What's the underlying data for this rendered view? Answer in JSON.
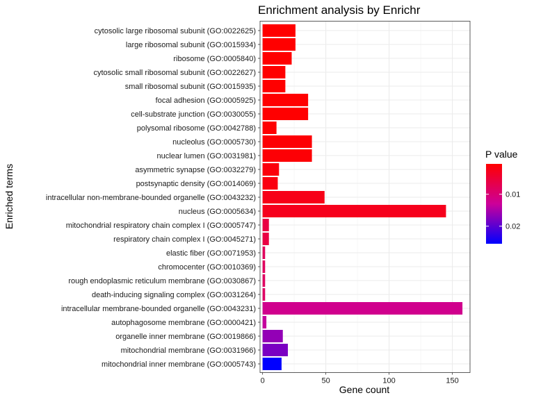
{
  "chart_data": {
    "type": "bar",
    "orientation": "horizontal",
    "title": "Enrichment analysis by Enrichr",
    "xlabel": "Gene count",
    "ylabel": "Enriched terms",
    "xlim": [
      -2,
      164
    ],
    "xticks": [
      0,
      50,
      100,
      150
    ],
    "grid": true,
    "legend": {
      "title": "P value",
      "placement": "right",
      "range": [
        0.0005,
        0.0255
      ],
      "ticks": [
        0.01,
        0.02
      ],
      "tick_labels": [
        "0.01",
        "0.02"
      ],
      "low_color": "#ff0000",
      "high_color": "#0000ff",
      "mid_color": "#cc0099"
    },
    "categories": [
      "cytosolic large ribosomal subunit (GO:0022625)",
      "large ribosomal subunit (GO:0015934)",
      "ribosome (GO:0005840)",
      "cytosolic small ribosomal subunit (GO:0022627)",
      "small ribosomal subunit (GO:0015935)",
      "focal adhesion (GO:0005925)",
      "cell-substrate junction (GO:0030055)",
      "polysomal ribosome (GO:0042788)",
      "nucleolus (GO:0005730)",
      "nuclear lumen (GO:0031981)",
      "asymmetric synapse (GO:0032279)",
      "postsynaptic density (GO:0014069)",
      "intracellular non-membrane-bounded organelle (GO:0043232)",
      "nucleus (GO:0005634)",
      "mitochondrial respiratory chain complex I (GO:0005747)",
      "respiratory chain complex I (GO:0045271)",
      "elastic fiber (GO:0071953)",
      "chromocenter (GO:0010369)",
      "rough endoplasmic reticulum membrane (GO:0030867)",
      "death-inducing signaling complex (GO:0031264)",
      "intracellular membrane-bounded organelle (GO:0043231)",
      "autophagosome membrane (GO:0000421)",
      "organelle inner membrane (GO:0019866)",
      "mitochondrial membrane (GO:0031966)",
      "mitochondrial inner membrane (GO:0005743)"
    ],
    "values": [
      26,
      26,
      23,
      18,
      18,
      36,
      36,
      11,
      39,
      39,
      13,
      12,
      49,
      145,
      5,
      5,
      2,
      2,
      2,
      2,
      158,
      3,
      16,
      20,
      15
    ],
    "p_values": [
      0.0002,
      0.0002,
      0.0003,
      0.0004,
      0.0004,
      0.0006,
      0.0006,
      0.0007,
      0.0009,
      0.0009,
      0.0015,
      0.0018,
      0.0024,
      0.0028,
      0.006,
      0.006,
      0.008,
      0.0082,
      0.0084,
      0.0086,
      0.012,
      0.0135,
      0.0165,
      0.018,
      0.026
    ]
  }
}
